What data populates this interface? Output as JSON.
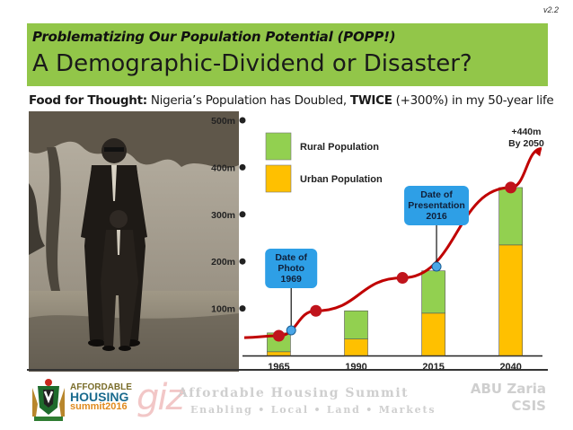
{
  "version": "v2.2",
  "header": {
    "subtitle": "Problematizing Our Population Potential (POPP!)",
    "title": "A Demographic-Dividend or Disaster?"
  },
  "food_for_thought": {
    "label": "Food for Thought:",
    "text_before": " Nigeria’s Population has Doubled, ",
    "emphasis": "TWICE",
    "text_after": " (+300%) in my 50-year life"
  },
  "chart_data": {
    "type": "bar",
    "stacked": true,
    "categories": [
      "1965",
      "1990",
      "2015",
      "2040"
    ],
    "series": [
      {
        "name": "Urban Population",
        "color": "#ffc000",
        "values": [
          8,
          35,
          90,
          235
        ]
      },
      {
        "name": "Rural Population",
        "color": "#92d050",
        "values": [
          40,
          60,
          90,
          122
        ]
      }
    ],
    "trend_points": [
      {
        "x": "1965",
        "y": 42
      },
      {
        "x": "1977",
        "y": 95
      },
      {
        "x": "2005",
        "y": 165
      },
      {
        "x": "2040",
        "y": 357
      },
      {
        "x": "2050",
        "y": 440
      }
    ],
    "y_ticks": [
      "100m",
      "200m",
      "300m",
      "400m",
      "500m"
    ],
    "y_tick_values": [
      100,
      200,
      300,
      400,
      500
    ],
    "ylim": [
      0,
      500
    ],
    "legend_position": "top-left",
    "annotations": {
      "photo_callout": [
        "Date of",
        "Photo",
        "1969"
      ],
      "presentation_callout": [
        "Date of",
        "Presentation",
        "2016"
      ],
      "projection": [
        "+440m",
        "By 2050"
      ]
    },
    "colors": {
      "trend": "#c00000",
      "callout": "#2e9fe6",
      "axis": "#222222"
    }
  },
  "footer": {
    "logo_text": [
      "AFFORDABLE",
      "HOUSING",
      "summit2016"
    ],
    "partner": "giz",
    "summit_title": "Affordable Housing Summit",
    "summit_subtitle": "Enabling • Local • Land • Markets",
    "university": [
      "ABU Zaria",
      "CSIS"
    ]
  }
}
